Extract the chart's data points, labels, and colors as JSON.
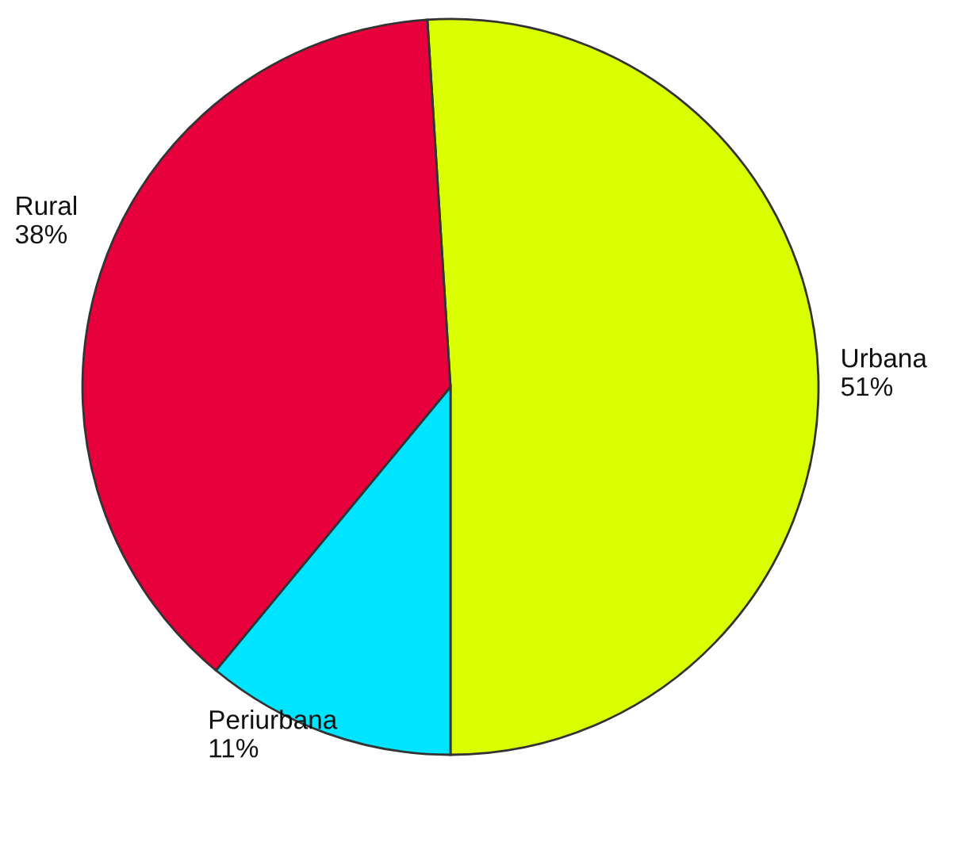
{
  "chart_data": {
    "type": "pie",
    "categories": [
      "Urbana",
      "Periurbana",
      "Rural"
    ],
    "values": [
      51,
      11,
      38
    ],
    "value_labels": [
      "51%",
      "11%",
      "38%"
    ],
    "colors": [
      "#d9ff00",
      "#00e5ff",
      "#e8003c"
    ]
  }
}
